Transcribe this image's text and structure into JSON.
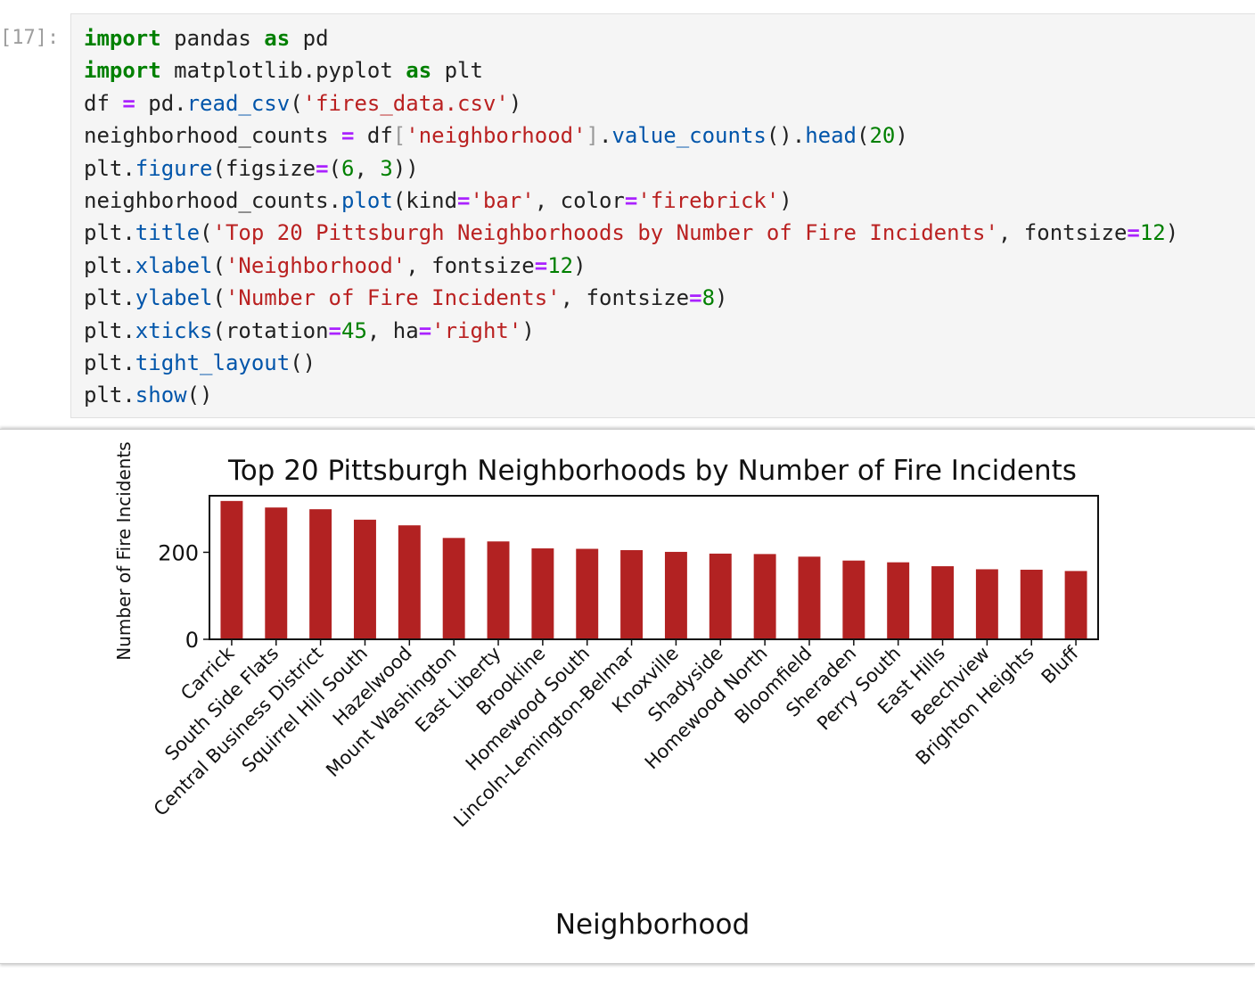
{
  "cell": {
    "prompt": "[17]:",
    "code_lines": [
      [
        [
          "import",
          "kw"
        ],
        [
          " pandas ",
          ""
        ],
        [
          "as",
          "kw"
        ],
        [
          " pd",
          ""
        ]
      ],
      [
        [
          "import",
          "kw"
        ],
        [
          " matplotlib.pyplot ",
          ""
        ],
        [
          "as",
          "kw"
        ],
        [
          " plt",
          ""
        ]
      ],
      [
        [
          "df ",
          ""
        ],
        [
          "=",
          "op"
        ],
        [
          " pd.",
          ""
        ],
        [
          "read_csv",
          "fn"
        ],
        [
          "(",
          ""
        ],
        [
          "'fires_data.csv'",
          "str"
        ],
        [
          ")",
          ""
        ]
      ],
      [
        [
          "neighborhood_counts ",
          ""
        ],
        [
          "=",
          "op"
        ],
        [
          " df",
          ""
        ],
        [
          "[",
          "br"
        ],
        [
          "'neighborhood'",
          "str"
        ],
        [
          "]",
          "br"
        ],
        [
          ".",
          ""
        ],
        [
          "value_counts",
          "fn"
        ],
        [
          "().",
          ""
        ],
        [
          "head",
          "fn"
        ],
        [
          "(",
          ""
        ],
        [
          "20",
          "num"
        ],
        [
          ")",
          ""
        ]
      ],
      [
        [
          "plt.",
          ""
        ],
        [
          "figure",
          "fn"
        ],
        [
          "(figsize",
          ""
        ],
        [
          "=",
          "op"
        ],
        [
          "(",
          ""
        ],
        [
          "6",
          "num"
        ],
        [
          ", ",
          ""
        ],
        [
          "3",
          "num"
        ],
        [
          "))",
          ""
        ]
      ],
      [
        [
          "neighborhood_counts.",
          ""
        ],
        [
          "plot",
          "fn"
        ],
        [
          "(kind",
          ""
        ],
        [
          "=",
          "op"
        ],
        [
          "'bar'",
          "str"
        ],
        [
          ", color",
          ""
        ],
        [
          "=",
          "op"
        ],
        [
          "'firebrick'",
          "str"
        ],
        [
          ")",
          ""
        ]
      ],
      [
        [
          "plt.",
          ""
        ],
        [
          "title",
          "fn"
        ],
        [
          "(",
          ""
        ],
        [
          "'Top 20 Pittsburgh Neighborhoods by Number of Fire Incidents'",
          "str"
        ],
        [
          ", fontsize",
          ""
        ],
        [
          "=",
          "op"
        ],
        [
          "12",
          "num"
        ],
        [
          ")",
          ""
        ]
      ],
      [
        [
          "plt.",
          ""
        ],
        [
          "xlabel",
          "fn"
        ],
        [
          "(",
          ""
        ],
        [
          "'Neighborhood'",
          "str"
        ],
        [
          ", fontsize",
          ""
        ],
        [
          "=",
          "op"
        ],
        [
          "12",
          "num"
        ],
        [
          ")",
          ""
        ]
      ],
      [
        [
          "plt.",
          ""
        ],
        [
          "ylabel",
          "fn"
        ],
        [
          "(",
          ""
        ],
        [
          "'Number of Fire Incidents'",
          "str"
        ],
        [
          ", fontsize",
          ""
        ],
        [
          "=",
          "op"
        ],
        [
          "8",
          "num"
        ],
        [
          ")",
          ""
        ]
      ],
      [
        [
          "plt.",
          ""
        ],
        [
          "xticks",
          "fn"
        ],
        [
          "(rotation",
          ""
        ],
        [
          "=",
          "op"
        ],
        [
          "45",
          "num"
        ],
        [
          ", ha",
          ""
        ],
        [
          "=",
          "op"
        ],
        [
          "'right'",
          "str"
        ],
        [
          ")",
          ""
        ]
      ],
      [
        [
          "plt.",
          ""
        ],
        [
          "tight_layout",
          "fn"
        ],
        [
          "()",
          ""
        ]
      ],
      [
        [
          "plt.",
          ""
        ],
        [
          "show",
          "fn"
        ],
        [
          "()",
          ""
        ]
      ]
    ]
  },
  "chart_data": {
    "type": "bar",
    "title": "Top 20 Pittsburgh Neighborhoods by Number of Fire Incidents",
    "xlabel": "Neighborhood",
    "ylabel": "Number of Fire Incidents",
    "bar_color": "#b22222",
    "ylim": [
      0,
      330
    ],
    "yticks": [
      0,
      200
    ],
    "grid": false,
    "categories": [
      "Carrick",
      "South Side Flats",
      "Central Business District",
      "Squirrel Hill South",
      "Hazelwood",
      "Mount Washington",
      "East Liberty",
      "Brookline",
      "Homewood South",
      "Lincoln-Lemington-Belmar",
      "Knoxville",
      "Shadyside",
      "Homewood North",
      "Bloomfield",
      "Sheraden",
      "Perry South",
      "East Hills",
      "Beechview",
      "Brighton Heights",
      "Bluff"
    ],
    "values": [
      318,
      303,
      299,
      275,
      262,
      233,
      225,
      209,
      208,
      205,
      201,
      197,
      196,
      190,
      181,
      177,
      168,
      161,
      160,
      157
    ]
  }
}
